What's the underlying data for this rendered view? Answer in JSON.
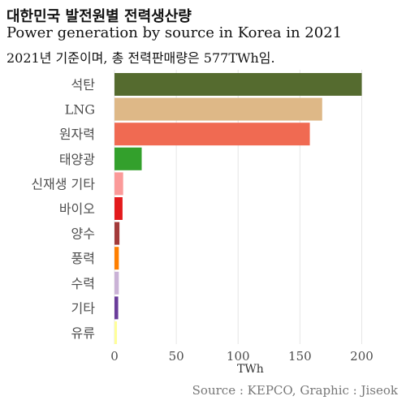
{
  "header": {
    "title": "대한민국 발전원별 전력생산량",
    "subtitle_en": "Power generation by source in Korea in 2021",
    "subtitle_ko": "2021년 기준이며, 총 전력판매량은 577TWh임."
  },
  "caption": "Source : KEPCO, Graphic : Jiseok",
  "chart_data": {
    "type": "bar",
    "orientation": "horizontal",
    "categories": [
      "석탄",
      "LNG",
      "원자력",
      "태양광",
      "신재생 기타",
      "바이오",
      "양수",
      "풍력",
      "수력",
      "기타",
      "유류"
    ],
    "values": [
      200,
      168,
      158,
      22,
      7,
      6.5,
      4,
      3.5,
      3.5,
      3,
      2
    ],
    "colors": [
      "#556b2f",
      "#deb887",
      "#f06a52",
      "#33a02c",
      "#fb9a99",
      "#e31a1c",
      "#a33a3a",
      "#ff7f00",
      "#cab2d6",
      "#6a3d9a",
      "#ffff99"
    ],
    "xlabel": "TWh",
    "ylabel": "",
    "xlim": [
      0,
      215
    ],
    "xticks": [
      0,
      50,
      100,
      150,
      200
    ],
    "grid": true
  }
}
